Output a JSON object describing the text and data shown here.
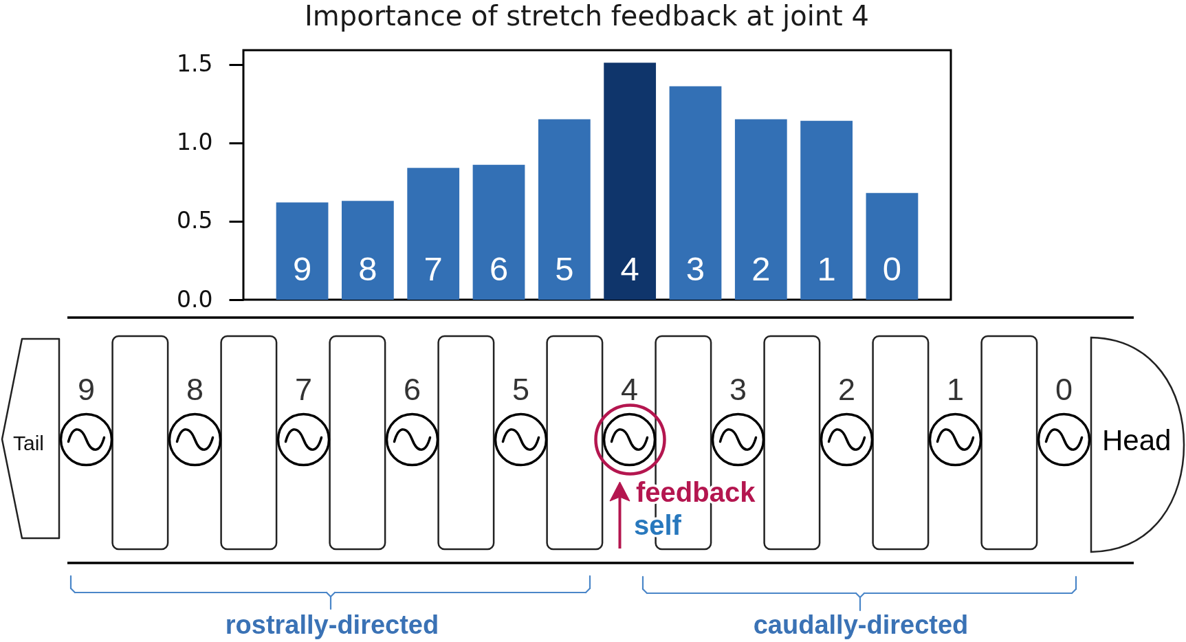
{
  "chart_data": {
    "type": "bar",
    "title": "Importance of stretch feedback at joint 4",
    "categories": [
      "9",
      "8",
      "7",
      "6",
      "5",
      "4",
      "3",
      "2",
      "1",
      "0"
    ],
    "values": [
      0.62,
      0.63,
      0.84,
      0.86,
      1.15,
      1.51,
      1.36,
      1.15,
      1.14,
      0.68
    ],
    "colors": [
      "#3370b5",
      "#3370b5",
      "#3370b5",
      "#3370b5",
      "#3370b5",
      "#0f356b",
      "#3370b5",
      "#3370b5",
      "#3370b5",
      "#3370b5"
    ],
    "ylim": [
      0,
      1.59
    ],
    "yticks": [
      {
        "value": 0,
        "label": "0.0"
      },
      0.5,
      {
        "value": 1,
        "label": "1.0"
      },
      1.5
    ],
    "grid": false,
    "annotations": [
      "Tail",
      "Head",
      "feedback",
      "self",
      "rostrally-directed",
      "caudally-directed"
    ]
  }
}
